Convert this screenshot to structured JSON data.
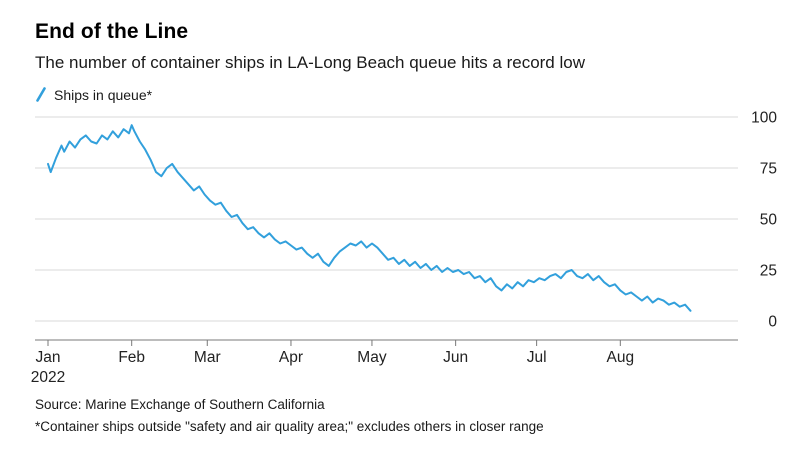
{
  "header": {
    "title": "End of the Line",
    "subtitle": "The number of container ships in LA-Long Beach queue hits a record low"
  },
  "legend": {
    "label": "Ships in queue*"
  },
  "footer": {
    "source": "Source: Marine Exchange of Southern California",
    "footnote": "*Container ships outside \"safety and air quality area;\" excludes others in closer range"
  },
  "chart_data": {
    "type": "line",
    "title": "End of the Line",
    "subtitle": "The number of container ships in LA-Long Beach queue hits a record low",
    "xlabel": "",
    "ylabel": "",
    "ylim": [
      0,
      100
    ],
    "y_ticks": [
      0,
      25,
      50,
      75,
      100
    ],
    "x_ticks": [
      "Jan",
      "Feb",
      "Mar",
      "Apr",
      "May",
      "Jun",
      "Jul",
      "Aug"
    ],
    "x_tick_sub": "2022",
    "grid": "horizontal",
    "legend_position": "top-left",
    "axis_labels_side": "right",
    "grid_color": "#d9d9d9",
    "axis_color": "#787878",
    "tick_color": "#222222",
    "series": [
      {
        "name": "Ships in queue*",
        "color": "#32a0dc",
        "points": [
          [
            "2022-01-01",
            77
          ],
          [
            "2022-01-02",
            73
          ],
          [
            "2022-01-04",
            80
          ],
          [
            "2022-01-06",
            86
          ],
          [
            "2022-01-07",
            83
          ],
          [
            "2022-01-09",
            88
          ],
          [
            "2022-01-11",
            85
          ],
          [
            "2022-01-13",
            89
          ],
          [
            "2022-01-15",
            91
          ],
          [
            "2022-01-17",
            88
          ],
          [
            "2022-01-19",
            87
          ],
          [
            "2022-01-21",
            91
          ],
          [
            "2022-01-23",
            89
          ],
          [
            "2022-01-25",
            93
          ],
          [
            "2022-01-27",
            90
          ],
          [
            "2022-01-29",
            94
          ],
          [
            "2022-01-31",
            92
          ],
          [
            "2022-02-01",
            96
          ],
          [
            "2022-02-02",
            93
          ],
          [
            "2022-02-04",
            88
          ],
          [
            "2022-02-06",
            84
          ],
          [
            "2022-02-08",
            79
          ],
          [
            "2022-02-10",
            73
          ],
          [
            "2022-02-12",
            71
          ],
          [
            "2022-02-14",
            75
          ],
          [
            "2022-02-16",
            77
          ],
          [
            "2022-02-18",
            73
          ],
          [
            "2022-02-20",
            70
          ],
          [
            "2022-02-22",
            67
          ],
          [
            "2022-02-24",
            64
          ],
          [
            "2022-02-26",
            66
          ],
          [
            "2022-02-28",
            62
          ],
          [
            "2022-03-02",
            59
          ],
          [
            "2022-03-04",
            57
          ],
          [
            "2022-03-06",
            58
          ],
          [
            "2022-03-08",
            54
          ],
          [
            "2022-03-10",
            51
          ],
          [
            "2022-03-12",
            52
          ],
          [
            "2022-03-14",
            48
          ],
          [
            "2022-03-16",
            45
          ],
          [
            "2022-03-18",
            46
          ],
          [
            "2022-03-20",
            43
          ],
          [
            "2022-03-22",
            41
          ],
          [
            "2022-03-24",
            43
          ],
          [
            "2022-03-26",
            40
          ],
          [
            "2022-03-28",
            38
          ],
          [
            "2022-03-30",
            39
          ],
          [
            "2022-04-01",
            37
          ],
          [
            "2022-04-03",
            35
          ],
          [
            "2022-04-05",
            36
          ],
          [
            "2022-04-07",
            33
          ],
          [
            "2022-04-09",
            31
          ],
          [
            "2022-04-11",
            33
          ],
          [
            "2022-04-13",
            29
          ],
          [
            "2022-04-15",
            27
          ],
          [
            "2022-04-17",
            31
          ],
          [
            "2022-04-19",
            34
          ],
          [
            "2022-04-21",
            36
          ],
          [
            "2022-04-23",
            38
          ],
          [
            "2022-04-25",
            37
          ],
          [
            "2022-04-27",
            39
          ],
          [
            "2022-04-29",
            36
          ],
          [
            "2022-05-01",
            38
          ],
          [
            "2022-05-03",
            36
          ],
          [
            "2022-05-05",
            33
          ],
          [
            "2022-05-07",
            30
          ],
          [
            "2022-05-09",
            31
          ],
          [
            "2022-05-11",
            28
          ],
          [
            "2022-05-13",
            30
          ],
          [
            "2022-05-15",
            27
          ],
          [
            "2022-05-17",
            29
          ],
          [
            "2022-05-19",
            26
          ],
          [
            "2022-05-21",
            28
          ],
          [
            "2022-05-23",
            25
          ],
          [
            "2022-05-25",
            27
          ],
          [
            "2022-05-27",
            24
          ],
          [
            "2022-05-29",
            26
          ],
          [
            "2022-05-31",
            24
          ],
          [
            "2022-06-02",
            25
          ],
          [
            "2022-06-04",
            23
          ],
          [
            "2022-06-06",
            24
          ],
          [
            "2022-06-08",
            21
          ],
          [
            "2022-06-10",
            22
          ],
          [
            "2022-06-12",
            19
          ],
          [
            "2022-06-14",
            21
          ],
          [
            "2022-06-16",
            17
          ],
          [
            "2022-06-18",
            15
          ],
          [
            "2022-06-20",
            18
          ],
          [
            "2022-06-22",
            16
          ],
          [
            "2022-06-24",
            19
          ],
          [
            "2022-06-26",
            17
          ],
          [
            "2022-06-28",
            20
          ],
          [
            "2022-06-30",
            19
          ],
          [
            "2022-07-02",
            21
          ],
          [
            "2022-07-04",
            20
          ],
          [
            "2022-07-06",
            22
          ],
          [
            "2022-07-08",
            23
          ],
          [
            "2022-07-10",
            21
          ],
          [
            "2022-07-12",
            24
          ],
          [
            "2022-07-14",
            25
          ],
          [
            "2022-07-16",
            22
          ],
          [
            "2022-07-18",
            21
          ],
          [
            "2022-07-20",
            23
          ],
          [
            "2022-07-22",
            20
          ],
          [
            "2022-07-24",
            22
          ],
          [
            "2022-07-26",
            19
          ],
          [
            "2022-07-28",
            17
          ],
          [
            "2022-07-30",
            18
          ],
          [
            "2022-08-01",
            15
          ],
          [
            "2022-08-03",
            13
          ],
          [
            "2022-08-05",
            14
          ],
          [
            "2022-08-07",
            12
          ],
          [
            "2022-08-09",
            10
          ],
          [
            "2022-08-11",
            12
          ],
          [
            "2022-08-13",
            9
          ],
          [
            "2022-08-15",
            11
          ],
          [
            "2022-08-17",
            10
          ],
          [
            "2022-08-19",
            8
          ],
          [
            "2022-08-21",
            9
          ],
          [
            "2022-08-23",
            7
          ],
          [
            "2022-08-25",
            8
          ],
          [
            "2022-08-27",
            5
          ]
        ]
      }
    ]
  }
}
